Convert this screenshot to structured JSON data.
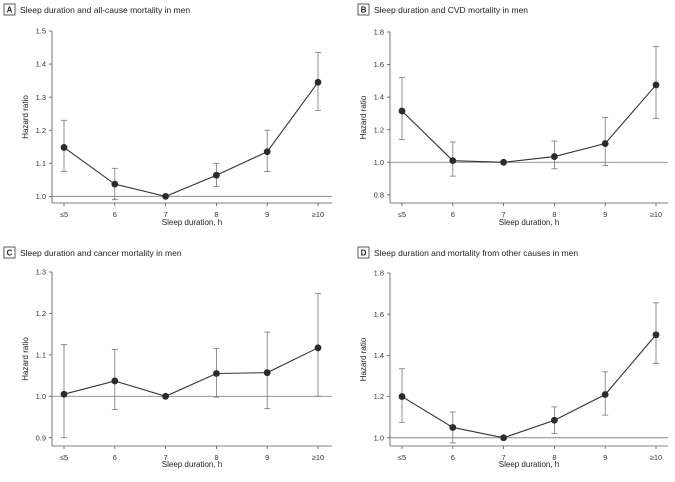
{
  "chart_data": [
    {
      "panel": "A",
      "type": "line",
      "title": "Sleep duration and all-cause mortality in men",
      "xlabel": "Sleep duration, h",
      "ylabel": "Hazard ratio",
      "categories": [
        "≤5",
        "6",
        "7",
        "8",
        "9",
        "≥10"
      ],
      "values": [
        1.148,
        1.037,
        1.0,
        1.064,
        1.135,
        1.345
      ],
      "ci_low": [
        1.075,
        0.99,
        1.0,
        1.03,
        1.075,
        1.26
      ],
      "ci_high": [
        1.23,
        1.085,
        1.0,
        1.1,
        1.2,
        1.435
      ],
      "ylim": [
        0.98,
        1.5
      ],
      "yticks": [
        "1.0",
        "1.1",
        "1.2",
        "1.3",
        "1.4",
        "1.5"
      ],
      "reference_line": 1.0
    },
    {
      "panel": "B",
      "type": "line",
      "title": "Sleep duration and CVD mortality in men",
      "xlabel": "Sleep duration, h",
      "ylabel": "Hazard ratio",
      "categories": [
        "≤5",
        "6",
        "7",
        "8",
        "9",
        "≥10"
      ],
      "values": [
        1.315,
        1.01,
        1.0,
        1.035,
        1.115,
        1.475
      ],
      "ci_low": [
        1.14,
        0.915,
        1.0,
        0.96,
        0.98,
        1.27
      ],
      "ci_high": [
        1.52,
        1.125,
        1.0,
        1.13,
        1.275,
        1.71
      ],
      "ylim": [
        0.75,
        1.8
      ],
      "yticks": [
        "0.8",
        "1.0",
        "1.2",
        "1.4",
        "1.6",
        "1.8"
      ],
      "reference_line": 1.0
    },
    {
      "panel": "C",
      "type": "line",
      "title": "Sleep duration and cancer mortality in men",
      "xlabel": "Sleep duration, h",
      "ylabel": "Hazard ratio",
      "categories": [
        "≤5",
        "6",
        "7",
        "8",
        "9",
        "≥10"
      ],
      "values": [
        1.005,
        1.037,
        1.0,
        1.055,
        1.057,
        1.117
      ],
      "ci_low": [
        0.9,
        0.968,
        1.0,
        0.998,
        0.97,
        1.0
      ],
      "ci_high": [
        1.125,
        1.113,
        1.0,
        1.115,
        1.155,
        1.248
      ],
      "ylim": [
        0.88,
        1.3
      ],
      "yticks": [
        "0.9",
        "1.0",
        "1.1",
        "1.2",
        "1.3"
      ],
      "reference_line": 1.0
    },
    {
      "panel": "D",
      "type": "line",
      "title": "Sleep duration and mortality from other causes in men",
      "xlabel": "Sleep duration, h",
      "ylabel": "Hazard ratio",
      "categories": [
        "≤5",
        "6",
        "7",
        "8",
        "9",
        "≥10"
      ],
      "values": [
        1.2,
        1.05,
        1.0,
        1.085,
        1.21,
        1.5
      ],
      "ci_low": [
        1.075,
        0.975,
        1.0,
        1.02,
        1.11,
        1.36
      ],
      "ci_high": [
        1.335,
        1.125,
        1.0,
        1.15,
        1.32,
        1.655
      ],
      "ylim": [
        0.96,
        1.8
      ],
      "yticks": [
        "1.0",
        "1.2",
        "1.4",
        "1.6",
        "1.8"
      ],
      "reference_line": 1.0
    }
  ]
}
